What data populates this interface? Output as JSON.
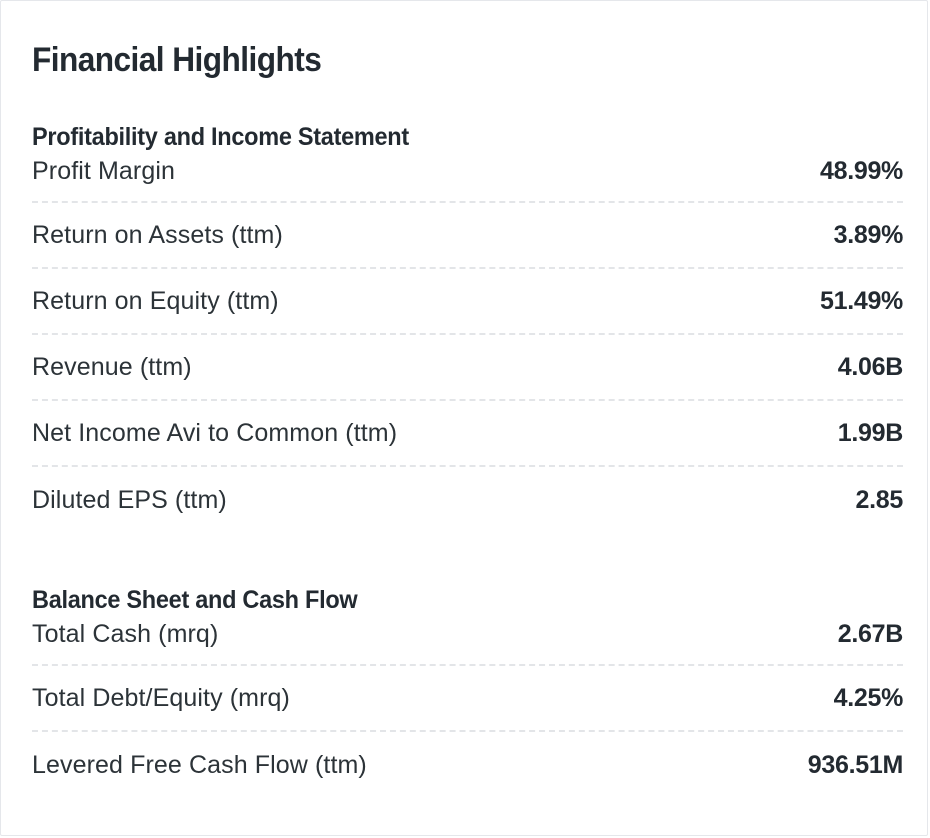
{
  "title": "Financial Highlights",
  "sections": [
    {
      "heading": "Profitability and Income Statement",
      "rows": [
        {
          "label": "Profit Margin",
          "value": "48.99%"
        },
        {
          "label": "Return on Assets (ttm)",
          "value": "3.89%"
        },
        {
          "label": "Return on Equity (ttm)",
          "value": "51.49%"
        },
        {
          "label": "Revenue (ttm)",
          "value": "4.06B"
        },
        {
          "label": "Net Income Avi to Common (ttm)",
          "value": "1.99B"
        },
        {
          "label": "Diluted EPS (ttm)",
          "value": "2.85"
        }
      ]
    },
    {
      "heading": "Balance Sheet and Cash Flow",
      "rows": [
        {
          "label": "Total Cash (mrq)",
          "value": "2.67B"
        },
        {
          "label": "Total Debt/Equity (mrq)",
          "value": "4.25%"
        },
        {
          "label": "Levered Free Cash Flow (ttm)",
          "value": "936.51M"
        }
      ]
    }
  ]
}
